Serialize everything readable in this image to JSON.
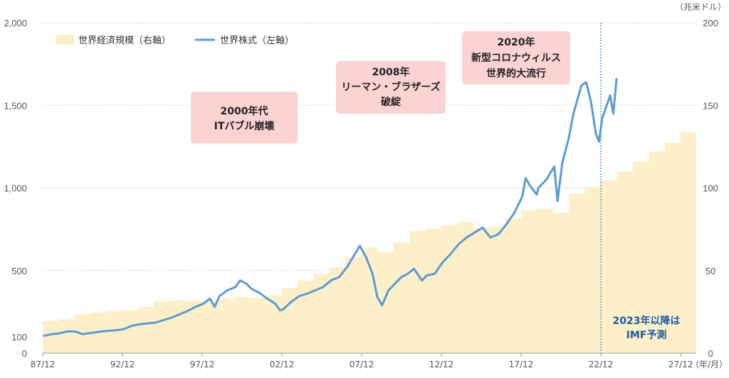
{
  "chart_data": {
    "type": "line+area",
    "left_axis": {
      "ticks": [
        "2,000",
        "1,500",
        "1,000",
        "500",
        "100",
        "0"
      ],
      "tick_values": [
        2000,
        1500,
        1000,
        500,
        100,
        0
      ],
      "ylim": [
        0,
        2000
      ]
    },
    "right_axis": {
      "ticks": [
        "200",
        "150",
        "100",
        "50",
        "0"
      ],
      "tick_values": [
        200,
        150,
        100,
        50,
        0
      ],
      "ylim": [
        0,
        200
      ],
      "unit": "（兆米ドル）"
    },
    "x_axis": {
      "ticks": [
        "87/12",
        "92/12",
        "97/12",
        "02/12",
        "07/12",
        "12/12",
        "17/12",
        "22/12",
        "27/12"
      ],
      "tick_years": [
        1987.92,
        1992.92,
        1997.92,
        2002.92,
        2007.92,
        2012.92,
        2017.92,
        2022.92,
        2027.92
      ],
      "unit": "（年/月）",
      "xlim": [
        1987.92,
        2028.9
      ]
    },
    "legend": [
      {
        "name": "世界経済規模（右軸）",
        "color": "#fdf0c8",
        "kind": "area"
      },
      {
        "name": "世界株式（左軸）",
        "color": "#5b9bd5",
        "kind": "line"
      }
    ],
    "economy_series": {
      "name": "世界経済規模（右軸）",
      "years": [
        1988,
        1989,
        1990,
        1991,
        1992,
        1993,
        1994,
        1995,
        1996,
        1997,
        1998,
        1999,
        2000,
        2001,
        2002,
        2003,
        2004,
        2005,
        2006,
        2007,
        2008,
        2009,
        2010,
        2011,
        2012,
        2013,
        2014,
        2015,
        2016,
        2017,
        2018,
        2019,
        2020,
        2021,
        2022,
        2023,
        2024,
        2025,
        2026,
        2027,
        2028
      ],
      "values": [
        19.5,
        20.5,
        23.5,
        24.5,
        25.5,
        26,
        28,
        31.5,
        32,
        31.5,
        31.5,
        33,
        34,
        33.5,
        35,
        39.5,
        44,
        48,
        52,
        58,
        64,
        61,
        67,
        74,
        75.5,
        77.5,
        79.5,
        75.5,
        76.5,
        81.5,
        86.5,
        87.5,
        85,
        96.5,
        100.5,
        104.5,
        110,
        116,
        122,
        127.5,
        134
      ]
    },
    "stock_series": {
      "name": "世界株式（左軸）",
      "points": [
        [
          1988.0,
          105
        ],
        [
          1988.5,
          115
        ],
        [
          1989.0,
          120
        ],
        [
          1989.5,
          132
        ],
        [
          1990.0,
          130
        ],
        [
          1990.4,
          115
        ],
        [
          1990.8,
          120
        ],
        [
          1991.5,
          130
        ],
        [
          1992.0,
          135
        ],
        [
          1992.5,
          138
        ],
        [
          1993.0,
          145
        ],
        [
          1993.5,
          165
        ],
        [
          1994.0,
          175
        ],
        [
          1994.5,
          180
        ],
        [
          1995.0,
          185
        ],
        [
          1995.5,
          200
        ],
        [
          1996.0,
          215
        ],
        [
          1996.5,
          235
        ],
        [
          1997.0,
          255
        ],
        [
          1997.5,
          280
        ],
        [
          1998.0,
          300
        ],
        [
          1998.4,
          330
        ],
        [
          1998.7,
          280
        ],
        [
          1999.0,
          345
        ],
        [
          1999.5,
          380
        ],
        [
          2000.0,
          400
        ],
        [
          2000.3,
          440
        ],
        [
          2000.7,
          420
        ],
        [
          2001.0,
          390
        ],
        [
          2001.5,
          365
        ],
        [
          2002.0,
          330
        ],
        [
          2002.5,
          300
        ],
        [
          2002.8,
          260
        ],
        [
          2003.0,
          265
        ],
        [
          2003.5,
          310
        ],
        [
          2004.0,
          345
        ],
        [
          2004.5,
          360
        ],
        [
          2005.0,
          380
        ],
        [
          2005.5,
          400
        ],
        [
          2006.0,
          440
        ],
        [
          2006.5,
          460
        ],
        [
          2007.0,
          520
        ],
        [
          2007.5,
          600
        ],
        [
          2007.8,
          650
        ],
        [
          2008.2,
          580
        ],
        [
          2008.6,
          480
        ],
        [
          2008.9,
          340
        ],
        [
          2009.2,
          290
        ],
        [
          2009.6,
          380
        ],
        [
          2010.0,
          420
        ],
        [
          2010.4,
          460
        ],
        [
          2010.8,
          480
        ],
        [
          2011.2,
          510
        ],
        [
          2011.7,
          440
        ],
        [
          2012.0,
          470
        ],
        [
          2012.5,
          480
        ],
        [
          2013.0,
          550
        ],
        [
          2013.5,
          600
        ],
        [
          2014.0,
          660
        ],
        [
          2014.5,
          700
        ],
        [
          2015.0,
          730
        ],
        [
          2015.5,
          760
        ],
        [
          2016.0,
          700
        ],
        [
          2016.5,
          720
        ],
        [
          2017.0,
          780
        ],
        [
          2017.5,
          850
        ],
        [
          2018.0,
          950
        ],
        [
          2018.2,
          1060
        ],
        [
          2018.5,
          1010
        ],
        [
          2018.9,
          960
        ],
        [
          2019.0,
          1000
        ],
        [
          2019.5,
          1050
        ],
        [
          2020.0,
          1130
        ],
        [
          2020.2,
          920
        ],
        [
          2020.5,
          1150
        ],
        [
          2020.9,
          1300
        ],
        [
          2021.2,
          1450
        ],
        [
          2021.7,
          1620
        ],
        [
          2022.0,
          1640
        ],
        [
          2022.3,
          1520
        ],
        [
          2022.6,
          1330
        ],
        [
          2022.8,
          1280
        ],
        [
          2023.0,
          1420
        ],
        [
          2023.5,
          1560
        ],
        [
          2023.7,
          1450
        ],
        [
          2023.9,
          1660
        ]
      ]
    },
    "forecast_divider_year": 2022.92,
    "annotations": [
      {
        "id": "dotcom",
        "lines": [
          "2000年代",
          "ITバブル崩壊"
        ]
      },
      {
        "id": "lehman",
        "lines": [
          "2008年",
          "リーマン・ブラザーズ",
          "破綻"
        ]
      },
      {
        "id": "covid",
        "lines": [
          "2020年",
          "新型コロナウィルス",
          "世界的大流行"
        ]
      }
    ],
    "forecast_note": [
      "2023年以降は",
      "IMF予測"
    ],
    "grid": true,
    "legend_position": "top-left"
  }
}
